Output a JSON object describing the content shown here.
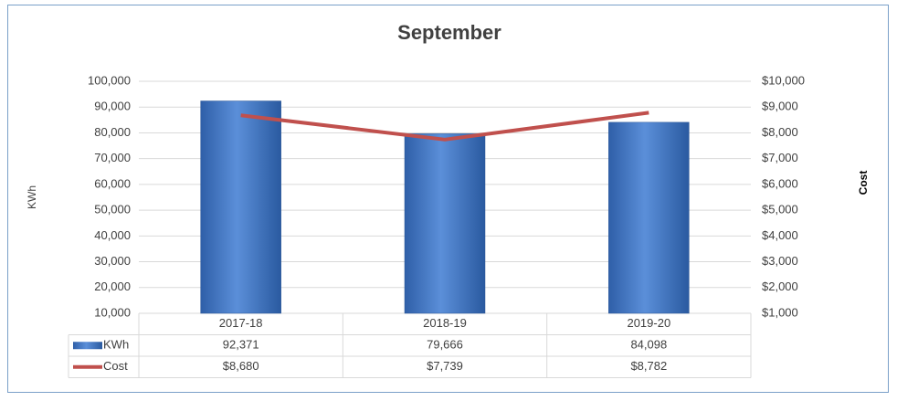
{
  "chart_data": {
    "type": "bar-line",
    "title": "September",
    "y_label": "KWh",
    "y2_label": "Cost",
    "categories": [
      "2017-18",
      "2018-19",
      "2019-20"
    ],
    "series": [
      {
        "name": "KWh",
        "type": "bar",
        "color": "#3d73c4",
        "values": [
          92371,
          79666,
          84098
        ],
        "value_labels": [
          "92,371",
          "79,666",
          "84,098"
        ]
      },
      {
        "name": "Cost",
        "type": "line",
        "axis": "y2",
        "color": "#c0504d",
        "values": [
          8680,
          7739,
          8782
        ],
        "value_labels": [
          "$8,680",
          "$7,739",
          "$8,782"
        ]
      }
    ],
    "ylim": [
      10000,
      100000
    ],
    "yticks": [
      {
        "value": 10000,
        "label": "10,000"
      },
      {
        "value": 20000,
        "label": "20,000"
      },
      {
        "value": 30000,
        "label": "30,000"
      },
      {
        "value": 40000,
        "label": "40,000"
      },
      {
        "value": 50000,
        "label": "50,000"
      },
      {
        "value": 60000,
        "label": "60,000"
      },
      {
        "value": 70000,
        "label": "70,000"
      },
      {
        "value": 80000,
        "label": "80,000"
      },
      {
        "value": 90000,
        "label": "90,000"
      },
      {
        "value": 100000,
        "label": "100,000"
      }
    ],
    "y2lim": [
      1000,
      10000
    ],
    "y2ticks": [
      {
        "value": 1000,
        "label": "$1,000"
      },
      {
        "value": 2000,
        "label": "$2,000"
      },
      {
        "value": 3000,
        "label": "$3,000"
      },
      {
        "value": 4000,
        "label": "$4,000"
      },
      {
        "value": 5000,
        "label": "$5,000"
      },
      {
        "value": 6000,
        "label": "$6,000"
      },
      {
        "value": 7000,
        "label": "$7,000"
      },
      {
        "value": 8000,
        "label": "$8,000"
      },
      {
        "value": 9000,
        "label": "$9,000"
      },
      {
        "value": 10000,
        "label": "$10,000"
      }
    ],
    "grid": true
  }
}
